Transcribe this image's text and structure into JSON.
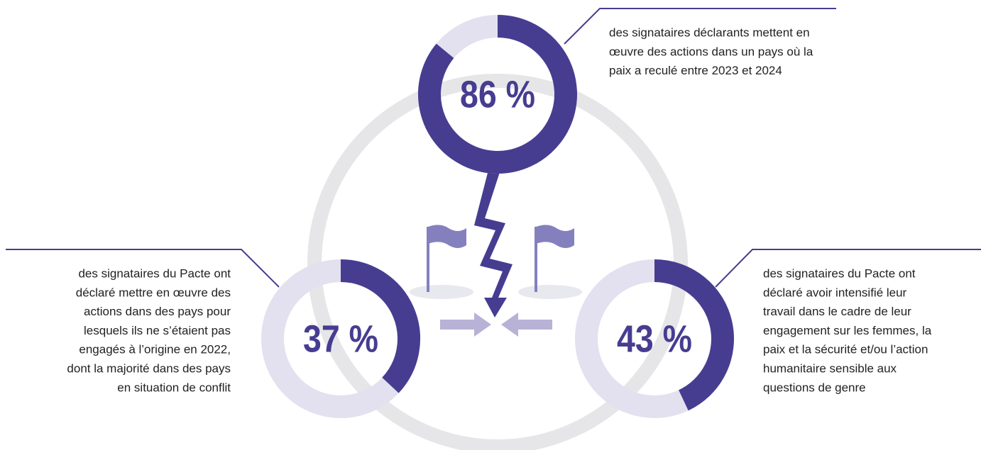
{
  "chart_data": [
    {
      "type": "donut",
      "values": [
        86
      ],
      "value_labels": [
        "86 %"
      ],
      "color": "#463d91",
      "track_color": "#e3e1ef",
      "lines": [
        "des signataires déclarants mettent en",
        "œuvre des actions dans un pays où la",
        "paix a reculé entre 2023 et 2024"
      ]
    },
    {
      "type": "donut",
      "values": [
        37
      ],
      "value_labels": [
        "37 %"
      ],
      "color": "#463d91",
      "track_color": "#e3e1ef",
      "lines": [
        "des signataires du Pacte ont",
        "déclaré mettre en œuvre des",
        "actions dans des pays pour",
        "lesquels ils ne s’étaient pas",
        "engagés à l’origine en 2022,",
        "dont la majorité dans des pays",
        "en situation de conflit"
      ]
    },
    {
      "type": "donut",
      "values": [
        43
      ],
      "value_labels": [
        "43 %"
      ],
      "color": "#463d91",
      "track_color": "#e3e1ef",
      "lines": [
        "des signataires du Pacte ont",
        "déclaré avoir intensifié leur",
        "travail dans le cadre de leur",
        "engagement sur les femmes, la",
        "paix et la sécurité et/ou l’action",
        "humanitaire sensible aux",
        "questions de genre"
      ]
    }
  ]
}
